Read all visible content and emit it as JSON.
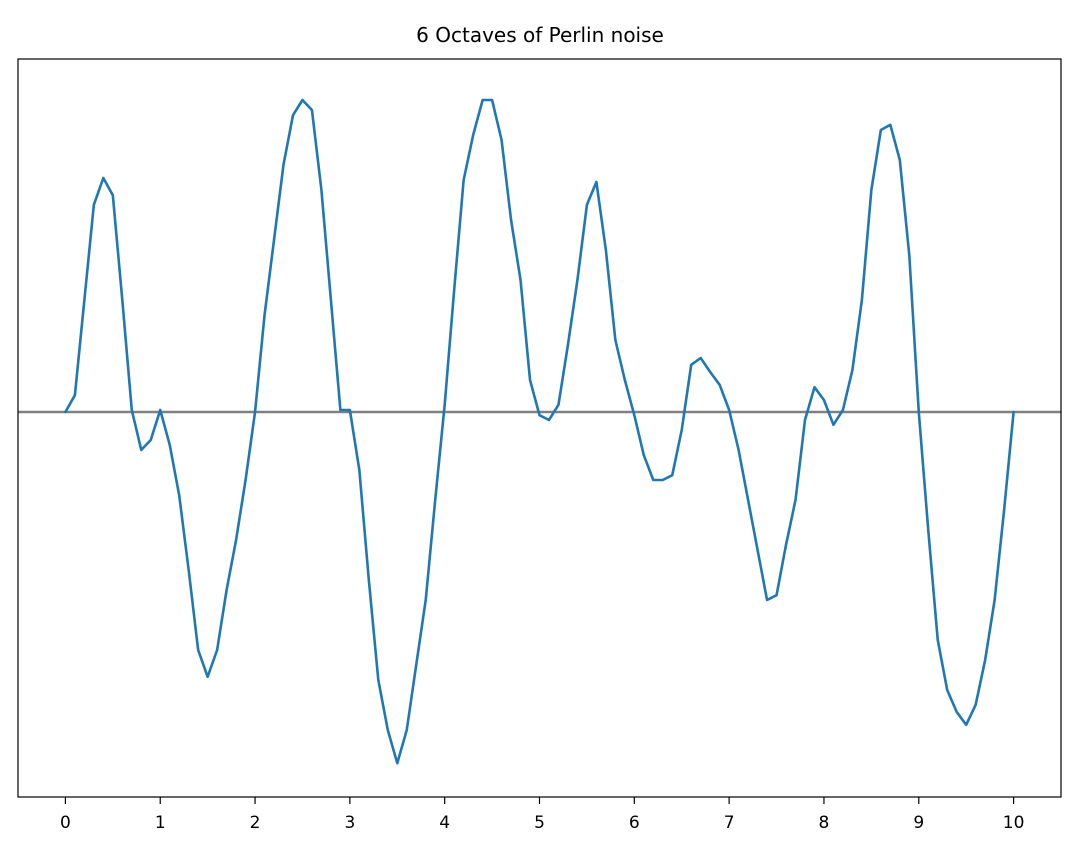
{
  "chart_data": {
    "type": "line",
    "title": "6 Octaves of Perlin noise",
    "x": [
      0,
      0.1,
      0.2,
      0.3,
      0.4,
      0.5,
      0.6,
      0.7,
      0.8,
      0.9,
      1,
      1.1,
      1.2,
      1.3,
      1.4,
      1.5,
      1.6,
      1.7,
      1.8,
      1.9,
      2,
      2.1,
      2.2,
      2.3,
      2.4,
      2.5,
      2.6,
      2.7,
      2.8,
      2.9,
      3,
      3.1,
      3.2,
      3.3,
      3.4,
      3.5,
      3.6,
      3.7,
      3.8,
      3.9,
      4,
      4.1,
      4.2,
      4.3,
      4.4,
      4.5,
      4.6,
      4.7,
      4.8,
      4.9,
      5,
      5.1,
      5.2,
      5.3,
      5.4,
      5.5,
      5.6,
      5.7,
      5.8,
      5.9,
      6,
      6.1,
      6.2,
      6.3,
      6.4,
      6.5,
      6.6,
      6.7,
      6.8,
      6.9,
      7,
      7.1,
      7.2,
      7.3,
      7.4,
      7.5,
      7.6,
      7.7,
      7.8,
      7.9,
      8,
      8.1,
      8.2,
      8.3,
      8.4,
      8.5,
      8.6,
      8.7,
      8.8,
      8.9,
      9,
      9.1,
      9.2,
      9.3,
      9.4,
      9.5,
      9.6,
      9.7,
      9.8,
      9.9,
      10
    ],
    "series": [
      {
        "color": "#1f77b4",
        "values": [
          0,
          0.042,
          0.28,
          0.518,
          0.585,
          0.542,
          0.28,
          0.005,
          -0.095,
          -0.07,
          0.005,
          -0.082,
          -0.208,
          -0.395,
          -0.595,
          -0.662,
          -0.595,
          -0.445,
          -0.32,
          -0.17,
          0,
          0.242,
          0.43,
          0.618,
          0.742,
          0.78,
          0.755,
          0.555,
          0.28,
          0.005,
          0.005,
          -0.145,
          -0.42,
          -0.67,
          -0.795,
          -0.878,
          -0.795,
          -0.632,
          -0.47,
          -0.22,
          0.018,
          0.305,
          0.58,
          0.692,
          0.78,
          0.78,
          0.68,
          0.48,
          0.33,
          0.08,
          -0.008,
          -0.02,
          0.018,
          0.168,
          0.33,
          0.518,
          0.575,
          0.405,
          0.18,
          0.08,
          -0.008,
          -0.108,
          -0.17,
          -0.17,
          -0.158,
          -0.045,
          0.118,
          0.135,
          0.1,
          0.068,
          0.005,
          -0.095,
          -0.22,
          -0.345,
          -0.47,
          -0.458,
          -0.332,
          -0.22,
          -0.02,
          0.062,
          0.03,
          -0.032,
          0.005,
          0.105,
          0.28,
          0.555,
          0.705,
          0.718,
          0.63,
          0.392,
          0,
          -0.295,
          -0.57,
          -0.695,
          -0.75,
          -0.782,
          -0.732,
          -0.62,
          -0.47,
          -0.245,
          0
        ]
      }
    ],
    "xlim": [
      -0.5,
      10.5
    ],
    "xticks": [
      0,
      1,
      2,
      3,
      4,
      5,
      6,
      7,
      8,
      9,
      10
    ],
    "ylim": [
      -0.9625,
      0.8825
    ],
    "hline": {
      "value": 0,
      "color": "#808080"
    }
  }
}
